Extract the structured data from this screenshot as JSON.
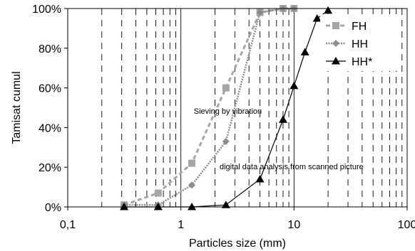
{
  "chart_data": {
    "type": "scatter",
    "xlabel": "Particles size (mm)",
    "ylabel": "Tamisat cumul",
    "x_scale": "log",
    "xlim": [
      0.1,
      100
    ],
    "ylim": [
      0,
      100
    ],
    "x_ticks": [
      {
        "value": 0.1,
        "label": "0,1"
      },
      {
        "value": 1,
        "label": "1"
      },
      {
        "value": 10,
        "label": "10"
      },
      {
        "value": 100,
        "label": "100"
      }
    ],
    "y_ticks": [
      {
        "value": 0,
        "label": "0%"
      },
      {
        "value": 20,
        "label": "20%"
      },
      {
        "value": 40,
        "label": "40%"
      },
      {
        "value": 60,
        "label": "60%"
      },
      {
        "value": 80,
        "label": "80%"
      },
      {
        "value": 100,
        "label": "100%"
      }
    ],
    "grid": {
      "vertical_minor": true,
      "vertical_major": true,
      "horizontal": false
    },
    "legend_position": "top-right",
    "series": [
      {
        "name": "FH",
        "marker": "square",
        "color": "#a6a6a6",
        "line_style": "dashed",
        "x": [
          0.315,
          0.63,
          1.25,
          2.5,
          5,
          8,
          10
        ],
        "y": [
          1,
          7,
          22,
          60,
          98,
          100,
          100
        ]
      },
      {
        "name": "HH",
        "marker": "diamond",
        "color": "#8c8c8c",
        "line_style": "dotted",
        "x": [
          0.315,
          0.63,
          1.25,
          2.5,
          5,
          8,
          10
        ],
        "y": [
          1,
          1,
          11,
          33,
          98,
          100,
          100
        ]
      },
      {
        "name": "HH*",
        "marker": "triangle",
        "color": "#000000",
        "line_style": "solid",
        "x": [
          0.315,
          0.63,
          1.25,
          2.5,
          5,
          8,
          10,
          12.5,
          16,
          20
        ],
        "y": [
          0,
          0,
          0,
          1,
          14,
          44,
          61,
          78,
          95,
          99
        ]
      }
    ],
    "annotations": [
      {
        "text": "Sieving by vibration",
        "x": 1.3,
        "y": 47
      },
      {
        "text": "digital data analysis from scanned picture",
        "x": 2.2,
        "y": 19
      }
    ]
  }
}
